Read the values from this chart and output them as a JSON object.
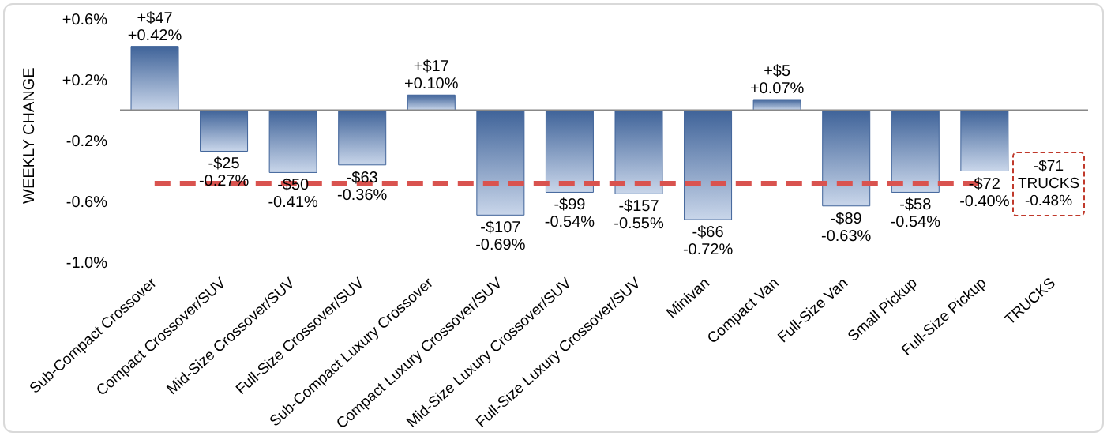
{
  "chart_data": {
    "type": "bar",
    "ylabel": "WEEKLY CHANGE",
    "categories": [
      "Sub-Compact Crossover",
      "Compact Crossover/SUV",
      "Mid-Size Crossover/SUV",
      "Full-Size Crossover/SUV",
      "Sub-Compact Luxury Crossover",
      "Compact Luxury Crossover/SUV",
      "Mid-Size Luxury Crossover/SUV",
      "Full-Size Luxury Crossover/SUV",
      "Minivan",
      "Compact Van",
      "Full-Size Van",
      "Small Pickup",
      "Full-Size Pickup",
      "TRUCKS"
    ],
    "values": [
      0.42,
      -0.27,
      -0.41,
      -0.36,
      0.1,
      -0.69,
      -0.54,
      -0.55,
      -0.72,
      0.07,
      -0.63,
      -0.54,
      -0.4,
      null
    ],
    "value_labels": [
      "+$47\n+0.42%",
      "-$25\n-0.27%",
      "-$50\n-0.41%",
      "-$63\n-0.36%",
      "+$17\n+0.10%",
      "-$107\n-0.69%",
      "-$99\n-0.54%",
      "-$157\n-0.55%",
      "-$66\n-0.72%",
      "+$5\n+0.07%",
      "-$89\n-0.63%",
      "-$58\n-0.54%",
      "-$72\n-0.40%",
      null
    ],
    "color": "#3f6399",
    "ylim": [
      -1.0,
      0.6
    ],
    "yticks": [
      {
        "value": 0.6,
        "label": "+0.6%"
      },
      {
        "value": 0.2,
        "label": "+0.2%"
      },
      {
        "value": -0.2,
        "label": "-0.2%"
      },
      {
        "value": -0.6,
        "label": "-0.6%"
      },
      {
        "value": -1.0,
        "label": "-1.0%"
      }
    ],
    "ref_lines": [
      {
        "axis": "y",
        "value": -0.48,
        "color": "#d9534f",
        "line_style": "dashed"
      }
    ],
    "annotations": [
      "-$71\nTRUCKS\n-0.48%"
    ],
    "grid": false,
    "legend": false
  }
}
